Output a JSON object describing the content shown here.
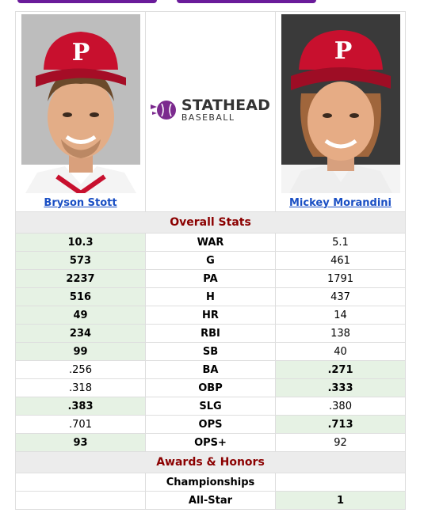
{
  "colors": {
    "accent_purple": "#6a1b9a",
    "section_title": "#8b0000",
    "link": "#1a4fc4",
    "win_background": "#e6f2e4",
    "section_background": "#ececec"
  },
  "left_player": {
    "name": "Bryson Stott",
    "photo_icon": "player-headshot"
  },
  "right_player": {
    "name": "Mickey Morandini",
    "photo_icon": "player-headshot"
  },
  "logo": {
    "brand": "STATHEAD",
    "sub": "BASEBALL"
  },
  "sections": {
    "overall": "Overall Stats",
    "awards": "Awards & Honors"
  },
  "overall_stats": [
    {
      "label": "WAR",
      "left": "10.3",
      "right": "5.1",
      "winner": "left"
    },
    {
      "label": "G",
      "left": "573",
      "right": "461",
      "winner": "left"
    },
    {
      "label": "PA",
      "left": "2237",
      "right": "1791",
      "winner": "left"
    },
    {
      "label": "H",
      "left": "516",
      "right": "437",
      "winner": "left"
    },
    {
      "label": "HR",
      "left": "49",
      "right": "14",
      "winner": "left"
    },
    {
      "label": "RBI",
      "left": "234",
      "right": "138",
      "winner": "left"
    },
    {
      "label": "SB",
      "left": "99",
      "right": "40",
      "winner": "left"
    },
    {
      "label": "BA",
      "left": ".256",
      "right": ".271",
      "winner": "right"
    },
    {
      "label": "OBP",
      "left": ".318",
      "right": ".333",
      "winner": "right"
    },
    {
      "label": "SLG",
      "left": ".383",
      "right": ".380",
      "winner": "left"
    },
    {
      "label": "OPS",
      "left": ".701",
      "right": ".713",
      "winner": "right"
    },
    {
      "label": "OPS+",
      "left": "93",
      "right": "92",
      "winner": "left"
    }
  ],
  "awards": [
    {
      "label": "Championships",
      "left": "",
      "right": "",
      "winner": "none"
    },
    {
      "label": "All-Star",
      "left": "",
      "right": "1",
      "winner": "right"
    }
  ]
}
